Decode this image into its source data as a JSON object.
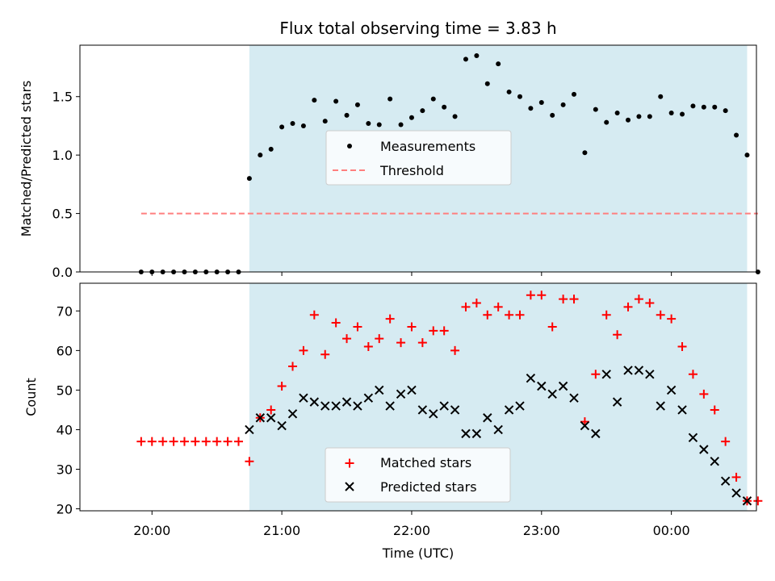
{
  "chart_data": [
    {
      "type": "scatter",
      "title": "Flux total observing time = 3.83 h",
      "xlabel": "",
      "ylabel": "Matched/Predicted stars",
      "ylim": [
        0,
        1.94
      ],
      "y_ticks": [
        "0.0",
        "0.5",
        "1.0",
        "1.5"
      ],
      "y_tick_values": [
        0,
        0.5,
        1.0,
        1.5
      ],
      "shaded_span": [
        "20:45",
        "00:35"
      ],
      "shade_color": "#add8e6",
      "legend": {
        "position": "center",
        "entries": [
          "Measurements",
          "Threshold"
        ]
      },
      "series": [
        {
          "name": "Measurements",
          "color": "#000000",
          "marker": "dot",
          "x": [
            "19:55",
            "20:00",
            "20:05",
            "20:10",
            "20:15",
            "20:20",
            "20:25",
            "20:30",
            "20:35",
            "20:40",
            "20:45",
            "20:50",
            "20:55",
            "21:00",
            "21:05",
            "21:10",
            "21:15",
            "21:20",
            "21:25",
            "21:30",
            "21:35",
            "21:40",
            "21:45",
            "21:50",
            "21:55",
            "22:00",
            "22:05",
            "22:10",
            "22:15",
            "22:20",
            "22:25",
            "22:30",
            "22:35",
            "22:40",
            "22:45",
            "22:50",
            "22:55",
            "23:00",
            "23:05",
            "23:10",
            "23:15",
            "23:20",
            "23:25",
            "23:30",
            "23:35",
            "23:40",
            "23:45",
            "23:50",
            "23:55",
            "00:00",
            "00:05",
            "00:10",
            "00:15",
            "00:20",
            "00:25",
            "00:30",
            "00:35",
            "00:40"
          ],
          "values": [
            0,
            0,
            0,
            0,
            0,
            0,
            0,
            0,
            0,
            0,
            0.8,
            1.0,
            1.05,
            1.24,
            1.27,
            1.25,
            1.47,
            1.29,
            1.46,
            1.34,
            1.43,
            1.27,
            1.26,
            1.48,
            1.26,
            1.32,
            1.38,
            1.48,
            1.41,
            1.33,
            1.82,
            1.85,
            1.61,
            1.78,
            1.54,
            1.5,
            1.4,
            1.45,
            1.34,
            1.43,
            1.52,
            1.02,
            1.39,
            1.28,
            1.36,
            1.3,
            1.33,
            1.33,
            1.5,
            1.36,
            1.35,
            1.42,
            1.41,
            1.41,
            1.38,
            1.17,
            1.0,
            0
          ]
        },
        {
          "name": "Threshold",
          "color": "#ff7f7f",
          "style": "dashed",
          "x": [
            "19:55",
            "00:40"
          ],
          "values": [
            0.5,
            0.5
          ]
        }
      ]
    },
    {
      "type": "scatter",
      "title": "",
      "xlabel": "Time (UTC)",
      "ylabel": "Count",
      "ylim": [
        19.5,
        77
      ],
      "y_ticks": [
        "20",
        "30",
        "40",
        "50",
        "60",
        "70"
      ],
      "y_tick_values": [
        20,
        30,
        40,
        50,
        60,
        70
      ],
      "x_ticks": [
        "20:00",
        "21:00",
        "22:00",
        "23:00",
        "00:00"
      ],
      "shaded_span": [
        "20:45",
        "00:35"
      ],
      "shade_color": "#add8e6",
      "legend": {
        "position": "lower center",
        "entries": [
          "Matched stars",
          "Predicted stars"
        ]
      },
      "series": [
        {
          "name": "Matched stars",
          "color": "#ff0000",
          "marker": "plus",
          "x": [
            "19:55",
            "20:00",
            "20:05",
            "20:10",
            "20:15",
            "20:20",
            "20:25",
            "20:30",
            "20:35",
            "20:40",
            "20:45",
            "20:50",
            "20:55",
            "21:00",
            "21:05",
            "21:10",
            "21:15",
            "21:20",
            "21:25",
            "21:30",
            "21:35",
            "21:40",
            "21:45",
            "21:50",
            "21:55",
            "22:00",
            "22:05",
            "22:10",
            "22:15",
            "22:20",
            "22:25",
            "22:30",
            "22:35",
            "22:40",
            "22:45",
            "22:50",
            "22:55",
            "23:00",
            "23:05",
            "23:10",
            "23:15",
            "23:20",
            "23:25",
            "23:30",
            "23:35",
            "23:40",
            "23:45",
            "23:50",
            "23:55",
            "00:00",
            "00:05",
            "00:10",
            "00:15",
            "00:20",
            "00:25",
            "00:30",
            "00:35",
            "00:40"
          ],
          "values": [
            37,
            37,
            37,
            37,
            37,
            37,
            37,
            37,
            37,
            37,
            32,
            43,
            45,
            51,
            56,
            60,
            69,
            59,
            67,
            63,
            66,
            61,
            63,
            68,
            62,
            66,
            62,
            65,
            65,
            60,
            71,
            72,
            69,
            71,
            69,
            69,
            74,
            74,
            66,
            73,
            73,
            42,
            54,
            69,
            64,
            71,
            73,
            72,
            69,
            68,
            61,
            54,
            49,
            45,
            37,
            28,
            22,
            22
          ]
        },
        {
          "name": "Predicted stars",
          "color": "#000000",
          "marker": "x",
          "x": [
            "20:45",
            "20:50",
            "20:55",
            "21:00",
            "21:05",
            "21:10",
            "21:15",
            "21:20",
            "21:25",
            "21:30",
            "21:35",
            "21:40",
            "21:45",
            "21:50",
            "21:55",
            "22:00",
            "22:05",
            "22:10",
            "22:15",
            "22:20",
            "22:25",
            "22:30",
            "22:35",
            "22:40",
            "22:45",
            "22:50",
            "22:55",
            "23:00",
            "23:05",
            "23:10",
            "23:15",
            "23:20",
            "23:25",
            "23:30",
            "23:35",
            "23:40",
            "23:45",
            "23:50",
            "23:55",
            "00:00",
            "00:05",
            "00:10",
            "00:15",
            "00:20",
            "00:25",
            "00:30",
            "00:35"
          ],
          "values": [
            40,
            43,
            43,
            41,
            44,
            48,
            47,
            46,
            46,
            47,
            46,
            48,
            50,
            46,
            49,
            50,
            45,
            44,
            46,
            45,
            39,
            39,
            43,
            40,
            45,
            46,
            53,
            51,
            49,
            51,
            48,
            41,
            39,
            54,
            47,
            55,
            55,
            54,
            46,
            50,
            45,
            38,
            35,
            32,
            27,
            24,
            22
          ]
        }
      ]
    }
  ]
}
